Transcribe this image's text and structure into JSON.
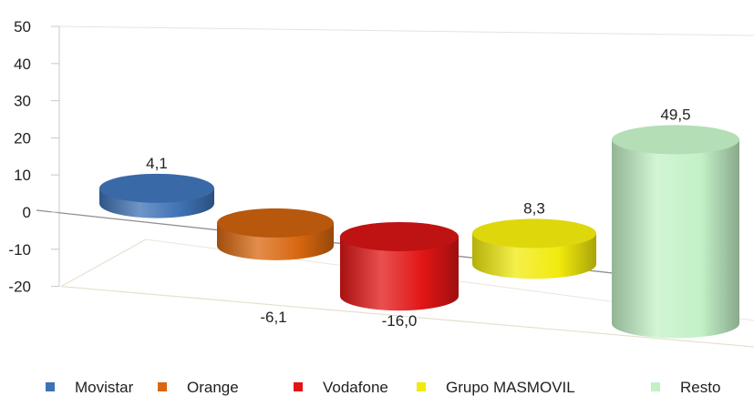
{
  "chart_data": {
    "type": "bar",
    "style": "3d-cylinder",
    "title": "",
    "xlabel": "",
    "ylabel": "",
    "categories": [
      "Movistar",
      "Orange",
      "Vodafone",
      "Grupo MASMOVIL",
      "Resto"
    ],
    "values": [
      4.1,
      -6.1,
      -16.0,
      8.3,
      49.5
    ],
    "value_labels": [
      "4,1",
      "-6,1",
      "-16,0",
      "8,3",
      "49,5"
    ],
    "colors": [
      "#3f72b5",
      "#d8670f",
      "#e11515",
      "#f1ea0d",
      "#c3f1c6"
    ],
    "ylim": [
      -20,
      50
    ],
    "yticks": [
      "50",
      "40",
      "30",
      "20",
      "10",
      "0",
      "-10",
      "-20"
    ],
    "legend_position": "bottom",
    "grid": false
  }
}
